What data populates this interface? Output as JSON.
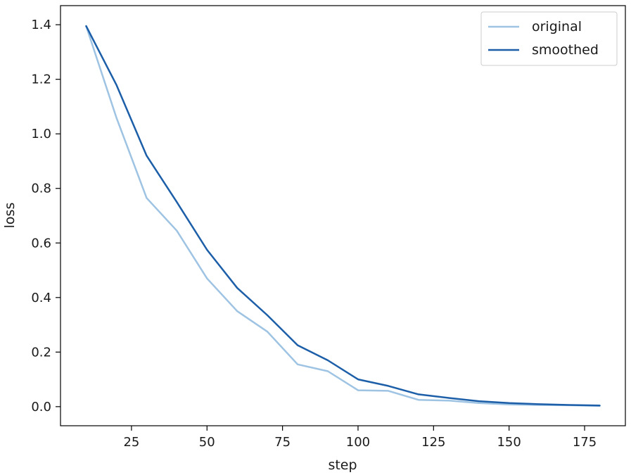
{
  "chart_data": {
    "type": "line",
    "title": "",
    "xlabel": "step",
    "ylabel": "loss",
    "xlim": [
      1.5,
      188.5
    ],
    "ylim": [
      -0.07,
      1.47
    ],
    "xticks": [
      25,
      50,
      75,
      100,
      125,
      150,
      175
    ],
    "yticks": [
      0.0,
      0.2,
      0.4,
      0.6,
      0.8,
      1.0,
      1.2,
      1.4
    ],
    "ytick_labels": [
      "0.0",
      "0.2",
      "0.4",
      "0.6",
      "0.8",
      "1.0",
      "1.2",
      "1.4"
    ],
    "x": [
      10,
      20,
      30,
      40,
      50,
      60,
      70,
      80,
      90,
      100,
      110,
      120,
      130,
      140,
      150,
      160,
      170,
      180
    ],
    "series": [
      {
        "name": "original",
        "color": "#9ec3e3",
        "values": [
          1.395,
          1.06,
          0.765,
          0.645,
          0.47,
          0.35,
          0.275,
          0.155,
          0.13,
          0.06,
          0.058,
          0.025,
          0.022,
          0.013,
          0.008,
          0.006,
          0.005,
          0.003
        ]
      },
      {
        "name": "smoothed",
        "color": "#1c5fa8",
        "values": [
          1.395,
          1.18,
          0.92,
          0.75,
          0.575,
          0.435,
          0.335,
          0.225,
          0.17,
          0.1,
          0.076,
          0.045,
          0.032,
          0.02,
          0.013,
          0.009,
          0.006,
          0.004
        ]
      }
    ],
    "legend_position": "upper right",
    "grid": false
  }
}
